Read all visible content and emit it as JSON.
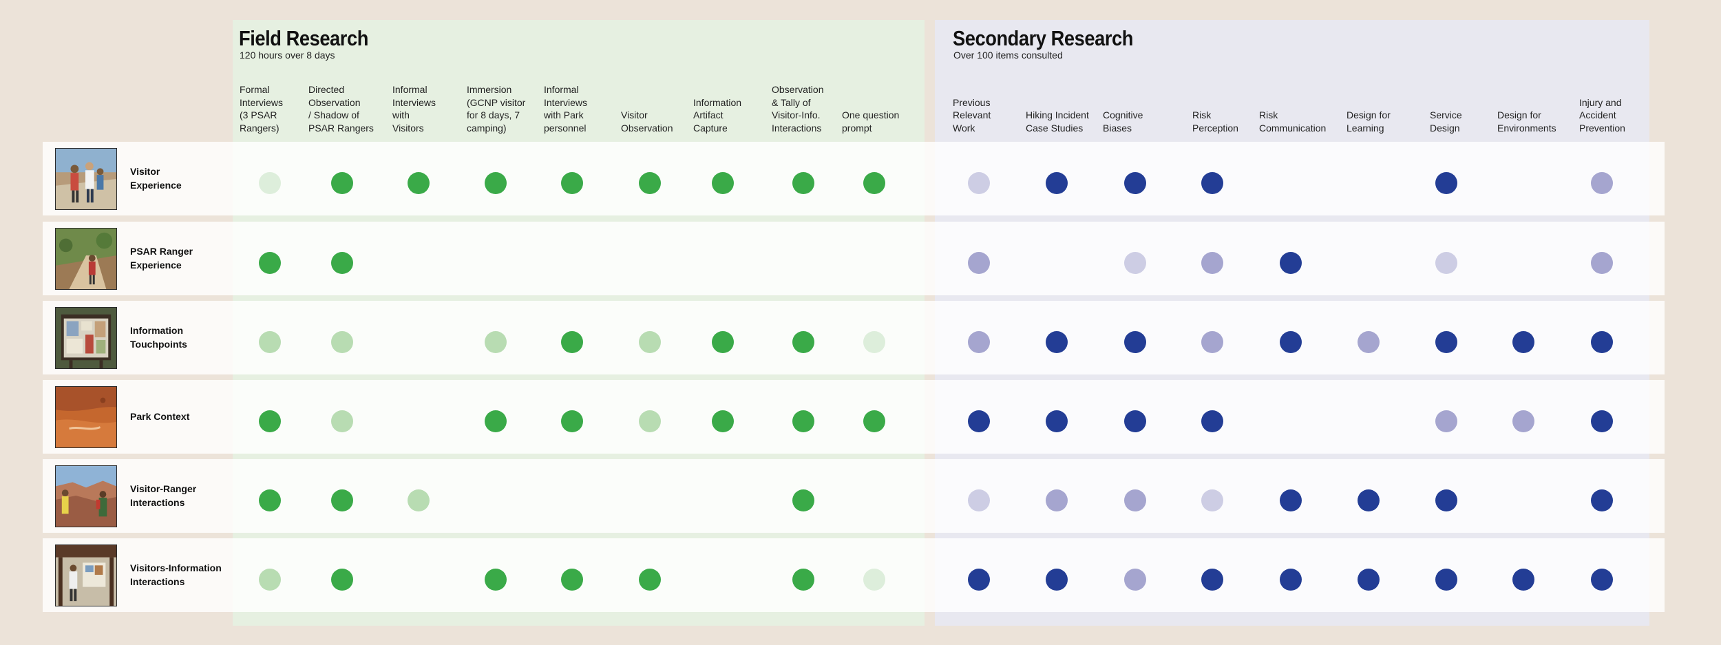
{
  "colors": {
    "background": "#ece3d9",
    "field_panel": "#e6f0e1",
    "secondary_panel": "#e8e8f0",
    "row_band": "#fcfcfa"
  },
  "field_research": {
    "title": "Field Research",
    "subtitle": "120 hours over 8 days",
    "columns": [
      "Formal\nInterviews\n(3 PSAR\nRangers)",
      "Directed\nObservation\n/ Shadow  of\nPSAR Rangers",
      "Informal\nInterviews\nwith\nVisitors",
      "Immersion\n(GCNP visitor\nfor 8 days, 7\ncamping)",
      "Informal\nInterviews\nwith Park\npersonnel",
      "Visitor\nObservation",
      "Information\nArtifact\nCapture",
      "Observation\n& Tally of\nVisitor-Info.\nInteractions",
      "One question\nprompt"
    ]
  },
  "secondary_research": {
    "title": "Secondary Research",
    "subtitle": "Over 100 items consulted",
    "columns": [
      "Previous\nRelevant\nWork",
      "Hiking Incident\nCase Studies",
      "Cognitive\nBiases",
      "Risk\nPerception",
      "Risk\nCommunication",
      "Design for\nLearning",
      "Service\nDesign",
      "Design for\nEnvironments",
      "Injury and\nAccident\nPrevention"
    ]
  },
  "dot_colors": {
    "field": [
      "#ddeedb",
      "#b8dcb2",
      "#3aaa48"
    ],
    "secondary": [
      "#cdcde4",
      "#a5a5cf",
      "#233d95"
    ]
  },
  "rows": [
    {
      "label": "Visitor\nExperience",
      "thumbnail_icon": "hikers-photo",
      "field": [
        1,
        3,
        3,
        3,
        3,
        3,
        3,
        3,
        3
      ],
      "secondary": [
        1,
        3,
        3,
        3,
        0,
        0,
        3,
        0,
        2
      ]
    },
    {
      "label": "PSAR Ranger\nExperience",
      "thumbnail_icon": "ranger-trail-photo",
      "field": [
        3,
        3,
        0,
        0,
        0,
        0,
        0,
        0,
        0
      ],
      "secondary": [
        2,
        0,
        1,
        2,
        3,
        0,
        1,
        0,
        2
      ]
    },
    {
      "label": "Information\nTouchpoints",
      "thumbnail_icon": "info-board-photo",
      "field": [
        2,
        2,
        0,
        2,
        3,
        2,
        3,
        3,
        1
      ],
      "secondary": [
        2,
        3,
        3,
        2,
        3,
        2,
        3,
        3,
        3
      ]
    },
    {
      "label": "Park Context",
      "thumbnail_icon": "red-rock-photo",
      "field": [
        3,
        2,
        0,
        3,
        3,
        2,
        3,
        3,
        3
      ],
      "secondary": [
        3,
        3,
        3,
        3,
        0,
        0,
        2,
        2,
        3
      ]
    },
    {
      "label": "Visitor-Ranger\nInteractions",
      "thumbnail_icon": "canyon-people-photo",
      "field": [
        3,
        3,
        2,
        0,
        0,
        0,
        0,
        3,
        0
      ],
      "secondary": [
        1,
        2,
        2,
        1,
        3,
        3,
        3,
        0,
        3
      ]
    },
    {
      "label": "Visitors-Information\nInteractions",
      "thumbnail_icon": "visitors-kiosk-photo",
      "field": [
        2,
        3,
        0,
        3,
        3,
        3,
        0,
        3,
        1
      ],
      "secondary": [
        3,
        3,
        2,
        3,
        3,
        3,
        3,
        3,
        3
      ]
    }
  ]
}
